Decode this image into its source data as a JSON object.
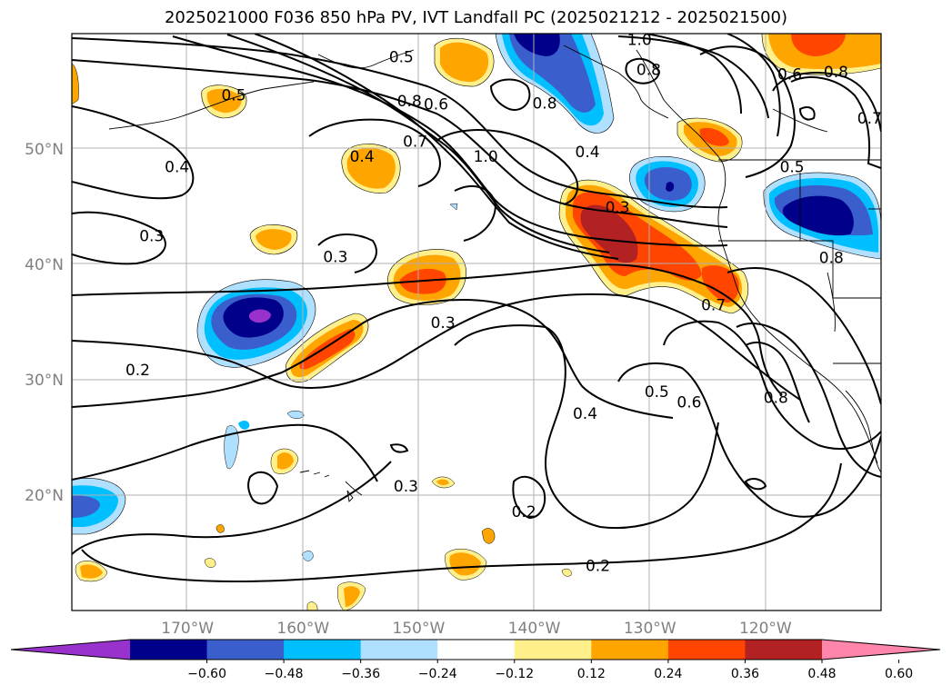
{
  "title": "2025021000 F036 850 hPa PV, IVT Landfall PC (2025021212 - 2025021500)",
  "map": {
    "projection": "PlateCarree",
    "lon_range": [
      -180,
      -110
    ],
    "lat_range": [
      10,
      60
    ],
    "gridlines": true,
    "lon_ticks": [
      {
        "value": -170,
        "label": "170°W"
      },
      {
        "value": -160,
        "label": "160°W"
      },
      {
        "value": -150,
        "label": "150°W"
      },
      {
        "value": -140,
        "label": "140°W"
      },
      {
        "value": -130,
        "label": "130°W"
      },
      {
        "value": -120,
        "label": "120°W"
      }
    ],
    "lat_ticks": [
      {
        "value": 50,
        "label": "50°N"
      },
      {
        "value": 40,
        "label": "40°N"
      },
      {
        "value": 30,
        "label": "30°N"
      },
      {
        "value": 20,
        "label": "20°N"
      }
    ]
  },
  "colorbar": {
    "extend": "both",
    "colors": [
      "#9932cc",
      "#00008b",
      "#3a5fcd",
      "#00bfff",
      "#b0e0ff",
      "#ffffff",
      "#fff08c",
      "#ffa500",
      "#ff4500",
      "#b22222",
      "#ff86aa"
    ],
    "tick_labels": [
      "−0.60",
      "−0.48",
      "−0.36",
      "−0.24",
      "−0.12",
      "0.12",
      "0.24",
      "0.36",
      "0.48",
      "0.60"
    ]
  },
  "pv_contour_labels": [
    {
      "text": "0.5",
      "lon": -151.5,
      "lat": 57.9
    },
    {
      "text": "0.6",
      "lon": -148.5,
      "lat": 53.8
    },
    {
      "text": "0.8",
      "lon": -150.8,
      "lat": 54.1
    },
    {
      "text": "0.7",
      "lon": -150.3,
      "lat": 50.6
    },
    {
      "text": "1.0",
      "lon": -144.2,
      "lat": 49.3
    },
    {
      "text": "0.8",
      "lon": -139.1,
      "lat": 53.9
    },
    {
      "text": "1.0",
      "lon": -130.9,
      "lat": 59.4
    },
    {
      "text": "0.8",
      "lon": -130.1,
      "lat": 56.8
    },
    {
      "text": "0.4",
      "lon": -135.4,
      "lat": 49.7
    },
    {
      "text": "0.3",
      "lon": -132.8,
      "lat": 44.9
    },
    {
      "text": "0.5",
      "lon": -166.0,
      "lat": 54.6
    },
    {
      "text": "0.4",
      "lon": -154.9,
      "lat": 49.3
    },
    {
      "text": "0.4",
      "lon": -170.9,
      "lat": 48.4
    },
    {
      "text": "0.3",
      "lon": -173.1,
      "lat": 42.4
    },
    {
      "text": "0.3",
      "lon": -157.2,
      "lat": 40.6
    },
    {
      "text": "0.3",
      "lon": -147.9,
      "lat": 34.9
    },
    {
      "text": "0.2",
      "lon": -174.3,
      "lat": 30.8
    },
    {
      "text": "0.3",
      "lon": -151.1,
      "lat": 20.7
    },
    {
      "text": "0.2",
      "lon": -140.9,
      "lat": 18.5
    },
    {
      "text": "0.2",
      "lon": -134.5,
      "lat": 13.8
    },
    {
      "text": "0.4",
      "lon": -135.6,
      "lat": 27.0
    },
    {
      "text": "0.5",
      "lon": -129.4,
      "lat": 28.9
    },
    {
      "text": "0.6",
      "lon": -126.6,
      "lat": 28.0
    },
    {
      "text": "0.7",
      "lon": -124.5,
      "lat": 36.4
    },
    {
      "text": "0.8",
      "lon": -119.1,
      "lat": 28.4
    },
    {
      "text": "0.6",
      "lon": -117.9,
      "lat": 56.4
    },
    {
      "text": "0.8",
      "lon": -113.9,
      "lat": 56.6
    },
    {
      "text": "0.5",
      "lon": -117.7,
      "lat": 48.4
    },
    {
      "text": "0.7",
      "lon": -111.0,
      "lat": 52.6
    },
    {
      "text": "0.8",
      "lon": -114.3,
      "lat": 40.5
    }
  ]
}
